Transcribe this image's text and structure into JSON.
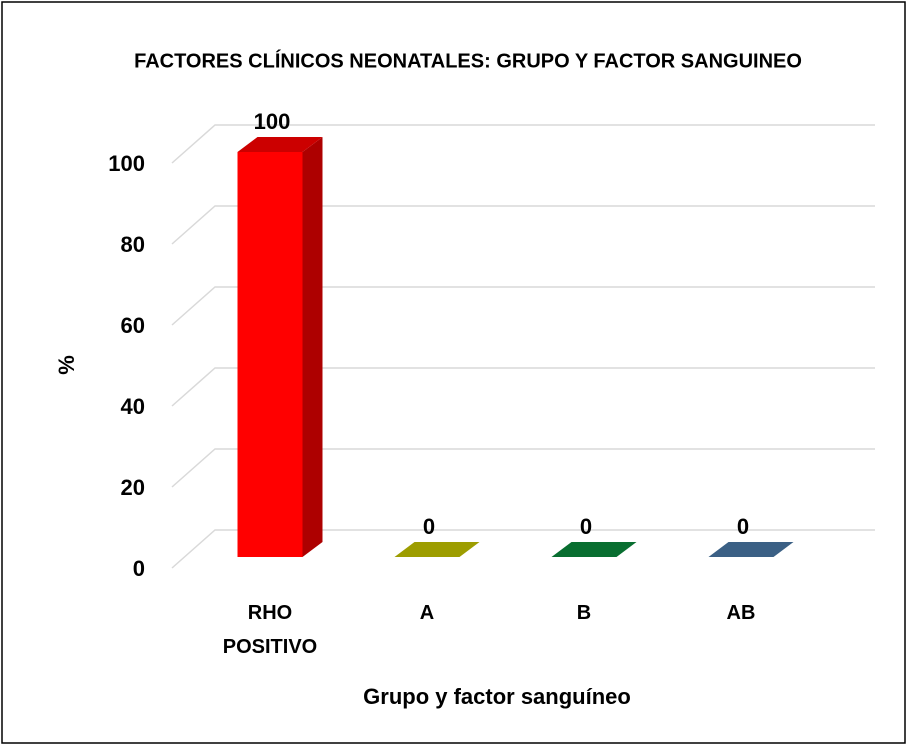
{
  "chart_data": {
    "type": "bar3d",
    "title": "FACTORES CLÍNICOS NEONATALES: GRUPO Y FACTOR SANGUINEO",
    "x_label": "Grupo y factor sanguíneo",
    "y_label": "%",
    "categories": [
      "RHO POSITIVO",
      "A",
      "B",
      "AB"
    ],
    "values": [
      100,
      0,
      0,
      0
    ],
    "colors": [
      "#ff0000",
      "#c4c400",
      "#0a8a3c",
      "#4a78a6"
    ],
    "ylim": [
      0,
      100
    ],
    "yticks": [
      0,
      20,
      40,
      60,
      80,
      100
    ],
    "grid": true
  }
}
